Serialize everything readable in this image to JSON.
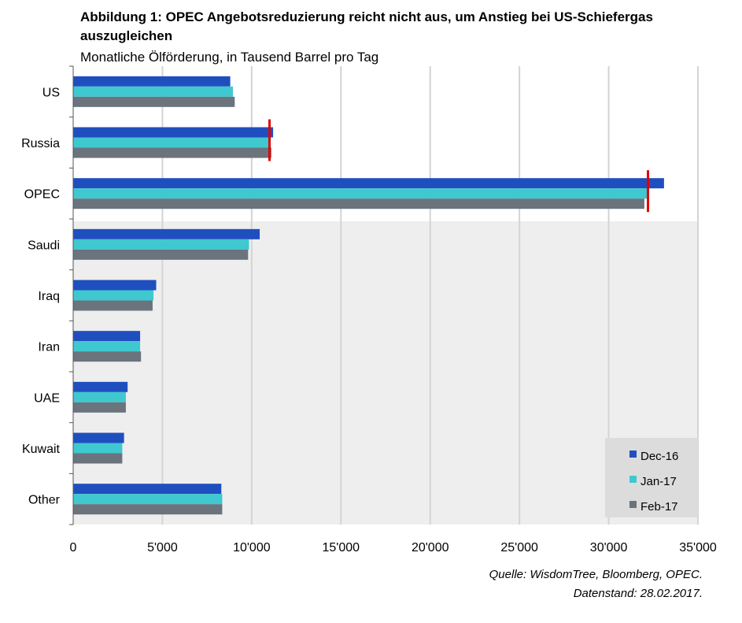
{
  "title": "Abbildung 1: OPEC Angebotsreduzierung reicht nicht aus, um Anstieg bei US-Schiefergas auszugleichen",
  "subtitle": "Monatliche Ölförderung, in Tausend Barrel pro Tag",
  "source_line1": "Quelle: WisdomTree, Bloomberg, OPEC.",
  "source_line2": "Datenstand: 28.02.2017.",
  "chart_data": {
    "type": "bar",
    "orientation": "horizontal",
    "categories": [
      "US",
      "Russia",
      "OPEC",
      "Saudi",
      "Iraq",
      "Iran",
      "UAE",
      "Kuwait",
      "Other"
    ],
    "series": [
      {
        "name": "Dec-16",
        "color": "#1f4fbf",
        "values": [
          8800,
          11200,
          33100,
          10450,
          4650,
          3750,
          3050,
          2850,
          8300
        ]
      },
      {
        "name": "Jan-17",
        "color": "#3fc8cf",
        "values": [
          8950,
          11050,
          32200,
          9850,
          4500,
          3750,
          2950,
          2750,
          8350
        ]
      },
      {
        "name": "Feb-17",
        "color": "#6b737d",
        "values": [
          9050,
          11100,
          32000,
          9800,
          4450,
          3800,
          2950,
          2750,
          8350
        ]
      }
    ],
    "xlim": [
      0,
      35000
    ],
    "xticks": [
      0,
      5000,
      10000,
      15000,
      20000,
      25000,
      30000,
      35000
    ],
    "xtick_labels": [
      "0",
      "5'000",
      "10'000",
      "15'000",
      "20'000",
      "25'000",
      "30'000",
      "35'000"
    ],
    "grid": true,
    "legend_position": "bottom-right",
    "shaded_categories": [
      "Saudi",
      "Iraq",
      "Iran",
      "UAE",
      "Kuwait",
      "Other"
    ],
    "shaded_color": "#eeeeee",
    "target_markers": [
      {
        "category": "Russia",
        "value": 11000,
        "color": "#e00000"
      },
      {
        "category": "OPEC",
        "value": 32200,
        "color": "#e00000"
      }
    ]
  }
}
